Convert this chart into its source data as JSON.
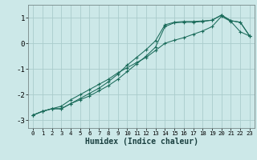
{
  "xlabel": "Humidex (Indice chaleur)",
  "ylabel": "",
  "background_color": "#cce8e8",
  "grid_color": "#aacccc",
  "line_color": "#1a6b5a",
  "xlim": [
    -0.5,
    23.5
  ],
  "ylim": [
    -3.3,
    1.5
  ],
  "xticks": [
    0,
    1,
    2,
    3,
    4,
    5,
    6,
    7,
    8,
    9,
    10,
    11,
    12,
    13,
    14,
    15,
    16,
    17,
    18,
    19,
    20,
    21,
    22,
    23
  ],
  "yticks": [
    -3,
    -2,
    -1,
    0,
    1
  ],
  "line1_x": [
    0,
    1,
    2,
    3,
    4,
    5,
    6,
    7,
    8,
    9,
    10,
    11,
    12,
    13,
    14,
    15,
    16,
    17,
    18,
    19,
    20,
    21,
    22,
    23
  ],
  "line1_y": [
    -2.8,
    -2.65,
    -2.55,
    -2.55,
    -2.35,
    -2.2,
    -2.05,
    -1.85,
    -1.65,
    -1.4,
    -1.1,
    -0.8,
    -0.5,
    -0.15,
    0.65,
    0.8,
    0.82,
    0.82,
    0.85,
    0.9,
    1.1,
    0.88,
    0.82,
    0.28
  ],
  "line2_x": [
    0,
    1,
    2,
    3,
    4,
    5,
    6,
    7,
    8,
    9,
    10,
    11,
    12,
    13,
    14,
    15,
    16,
    17,
    18,
    19,
    20,
    21,
    22,
    23
  ],
  "line2_y": [
    -2.8,
    -2.65,
    -2.55,
    -2.55,
    -2.35,
    -2.15,
    -1.95,
    -1.75,
    -1.5,
    -1.2,
    -0.85,
    -0.55,
    -0.25,
    0.1,
    0.72,
    0.82,
    0.85,
    0.85,
    0.87,
    0.9,
    1.1,
    0.88,
    0.82,
    0.28
  ],
  "line3_x": [
    0,
    1,
    2,
    3,
    4,
    5,
    6,
    7,
    8,
    9,
    10,
    11,
    12,
    13,
    14,
    15,
    16,
    17,
    18,
    19,
    20,
    21,
    22,
    23
  ],
  "line3_y": [
    -2.8,
    -2.65,
    -2.55,
    -2.45,
    -2.2,
    -2.0,
    -1.8,
    -1.6,
    -1.4,
    -1.15,
    -0.95,
    -0.75,
    -0.55,
    -0.28,
    0.0,
    0.12,
    0.22,
    0.35,
    0.48,
    0.65,
    1.05,
    0.85,
    0.45,
    0.28
  ]
}
